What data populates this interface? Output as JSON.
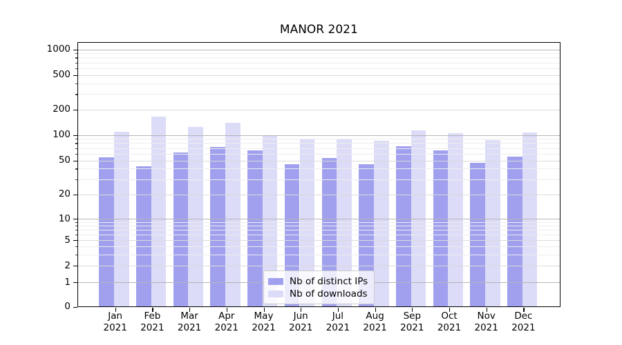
{
  "chart_data": {
    "type": "bar",
    "title": "MANOR 2021",
    "categories": [
      "Jan",
      "Feb",
      "Mar",
      "Apr",
      "May",
      "Jun",
      "Jul",
      "Aug",
      "Sep",
      "Oct",
      "Nov",
      "Dec"
    ],
    "category_year": "2021",
    "series": [
      {
        "name": "Nb of distinct IPs",
        "color": "#a0a0ee",
        "values": [
          54,
          43,
          62,
          72,
          66,
          45,
          53,
          45,
          73,
          66,
          47,
          55
        ]
      },
      {
        "name": "Nb of downloads",
        "color": "#dcdcf8",
        "values": [
          108,
          165,
          125,
          140,
          100,
          88,
          91,
          85,
          112,
          104,
          87,
          107
        ]
      }
    ],
    "yscale": "symlog",
    "ytick_labels": [
      "0",
      "1",
      "2",
      "5",
      "10",
      "20",
      "50",
      "100",
      "200",
      "500",
      "1000"
    ],
    "ylim": [
      0,
      1270
    ],
    "xlabel": "",
    "ylabel": "",
    "grid": true,
    "legend_position": "lower center"
  }
}
